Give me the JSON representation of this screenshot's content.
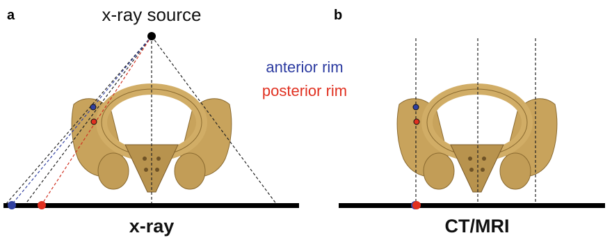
{
  "panel_a": {
    "label": "a",
    "source_label": "x-ray source",
    "anterior_label": "anterior rim",
    "posterior_label": "posterior rim",
    "caption": "x-ray"
  },
  "panel_b": {
    "label": "b",
    "caption": "CT/MRI"
  }
}
